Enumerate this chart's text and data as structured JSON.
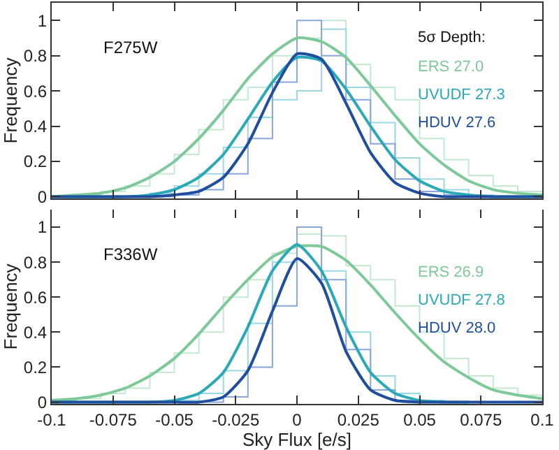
{
  "chart_data": [
    {
      "type": "line",
      "title": "F275W",
      "ylabel": "Frequency",
      "legend_title": "5σ Depth:",
      "legend": "top right",
      "tick_labels": "y",
      "grid": false,
      "x": [
        -0.1,
        -0.09,
        -0.08,
        -0.07,
        -0.06,
        -0.05,
        -0.04,
        -0.03,
        -0.02,
        -0.01,
        0,
        0.01,
        0.02,
        0.03,
        0.04,
        0.05,
        0.06,
        0.07,
        0.08,
        0.09,
        0.1
      ],
      "xlim": [
        -0.1,
        0.1
      ],
      "xticks": [
        -0.1,
        -0.075,
        -0.05,
        -0.025,
        0,
        0.025,
        0.05,
        0.075,
        0.1
      ],
      "ylim": [
        -0.01,
        1.1
      ],
      "yticks": [
        0,
        0.2,
        0.4,
        0.6,
        0.8,
        1
      ],
      "series": [
        {
          "type": "step",
          "color": "#c5e8d2",
          "values": [
            0,
            0.01,
            0.03,
            0.06,
            0.13,
            0.24,
            0.38,
            0.55,
            0.62,
            0.8,
            0.9,
            1,
            0.75,
            0.62,
            0.55,
            0.33,
            0.21,
            0.12,
            0.06,
            0.03,
            0.01
          ]
        },
        {
          "type": "step",
          "color": "#9ad8e2",
          "values": [
            0,
            0,
            0,
            0,
            0.02,
            0.06,
            0.13,
            0.28,
            0.45,
            0.55,
            0.6,
            0.95,
            0.62,
            0.42,
            0.22,
            0.1,
            0.04,
            0.01,
            0,
            0,
            0
          ]
        },
        {
          "type": "step",
          "color": "#8aa7dc",
          "values": [
            0,
            0,
            0,
            0,
            0,
            0.01,
            0.04,
            0.13,
            0.33,
            0.65,
            1,
            0.8,
            0.55,
            0.3,
            0.1,
            0.03,
            0.01,
            0,
            0,
            0,
            0
          ]
        },
        {
          "type": "line",
          "name": "ERS 27.0",
          "color": "#7ec99a",
          "values": [
            0,
            0.01,
            0.02,
            0.05,
            0.11,
            0.2,
            0.33,
            0.49,
            0.67,
            0.81,
            0.9,
            0.88,
            0.79,
            0.63,
            0.46,
            0.3,
            0.18,
            0.09,
            0.04,
            0.02,
            0.01
          ]
        },
        {
          "type": "line",
          "name": "UVUDF 27.3",
          "color": "#2aa9b9",
          "values": [
            0,
            0,
            0,
            0,
            0.01,
            0.04,
            0.11,
            0.24,
            0.44,
            0.65,
            0.79,
            0.77,
            0.61,
            0.4,
            0.21,
            0.09,
            0.03,
            0.01,
            0,
            0,
            0
          ]
        },
        {
          "type": "line",
          "name": "HDUV 27.6",
          "color": "#1f4e9e",
          "values": [
            0,
            0,
            0,
            0,
            0,
            0.01,
            0.03,
            0.11,
            0.3,
            0.59,
            0.81,
            0.78,
            0.53,
            0.25,
            0.08,
            0.02,
            0,
            0,
            0,
            0,
            0
          ]
        }
      ]
    },
    {
      "type": "line",
      "title": "F336W",
      "xlabel": "Sky Flux [e/s]",
      "ylabel": "Frequency",
      "legend": "top right",
      "grid": false,
      "x": [
        -0.1,
        -0.09,
        -0.08,
        -0.07,
        -0.06,
        -0.05,
        -0.04,
        -0.03,
        -0.02,
        -0.01,
        0,
        0.01,
        0.02,
        0.03,
        0.04,
        0.05,
        0.06,
        0.07,
        0.08,
        0.09,
        0.1
      ],
      "xlim": [
        -0.1,
        0.1
      ],
      "xticks": [
        -0.1,
        -0.075,
        -0.05,
        -0.025,
        0,
        0.025,
        0.05,
        0.075,
        0.1
      ],
      "ylim": [
        -0.01,
        1.1
      ],
      "yticks": [
        0,
        0.2,
        0.4,
        0.6,
        0.8,
        1
      ],
      "series": [
        {
          "type": "step",
          "color": "#c5e8d2",
          "values": [
            0.01,
            0.02,
            0.05,
            0.08,
            0.17,
            0.28,
            0.4,
            0.6,
            0.7,
            0.85,
            0.96,
            0.95,
            0.78,
            0.7,
            0.55,
            0.4,
            0.25,
            0.15,
            0.08,
            0.04,
            0.01
          ]
        },
        {
          "type": "step",
          "color": "#9ad8e2",
          "values": [
            0,
            0,
            0,
            0,
            0,
            0.01,
            0.05,
            0.18,
            0.45,
            0.8,
            1,
            0.75,
            0.4,
            0.15,
            0.05,
            0.01,
            0,
            0,
            0,
            0,
            0
          ]
        },
        {
          "type": "step",
          "color": "#8aa7dc",
          "values": [
            0,
            0,
            0,
            0,
            0,
            0,
            0,
            0.03,
            0.2,
            0.55,
            1,
            0.7,
            0.3,
            0.07,
            0.01,
            0,
            0,
            0,
            0,
            0,
            0
          ]
        },
        {
          "type": "line",
          "name": "ERS 26.9",
          "color": "#7ec99a",
          "values": [
            0.01,
            0.02,
            0.04,
            0.08,
            0.15,
            0.25,
            0.39,
            0.55,
            0.7,
            0.83,
            0.89,
            0.89,
            0.81,
            0.67,
            0.51,
            0.36,
            0.23,
            0.14,
            0.07,
            0.04,
            0.02
          ]
        },
        {
          "type": "line",
          "name": "UVUDF 27.8",
          "color": "#2aa9b9",
          "values": [
            0,
            0,
            0,
            0,
            0,
            0.01,
            0.05,
            0.17,
            0.43,
            0.75,
            0.9,
            0.75,
            0.43,
            0.17,
            0.05,
            0.01,
            0,
            0,
            null,
            null,
            null
          ]
        },
        {
          "type": "line",
          "name": "HDUV 28.0",
          "color": "#1f4e9e",
          "values": [
            0,
            0,
            0,
            0,
            0,
            0,
            0,
            0.03,
            0.18,
            0.52,
            0.82,
            0.68,
            0.29,
            0.07,
            0.01,
            0,
            0,
            0,
            0,
            0,
            0
          ]
        }
      ]
    }
  ]
}
